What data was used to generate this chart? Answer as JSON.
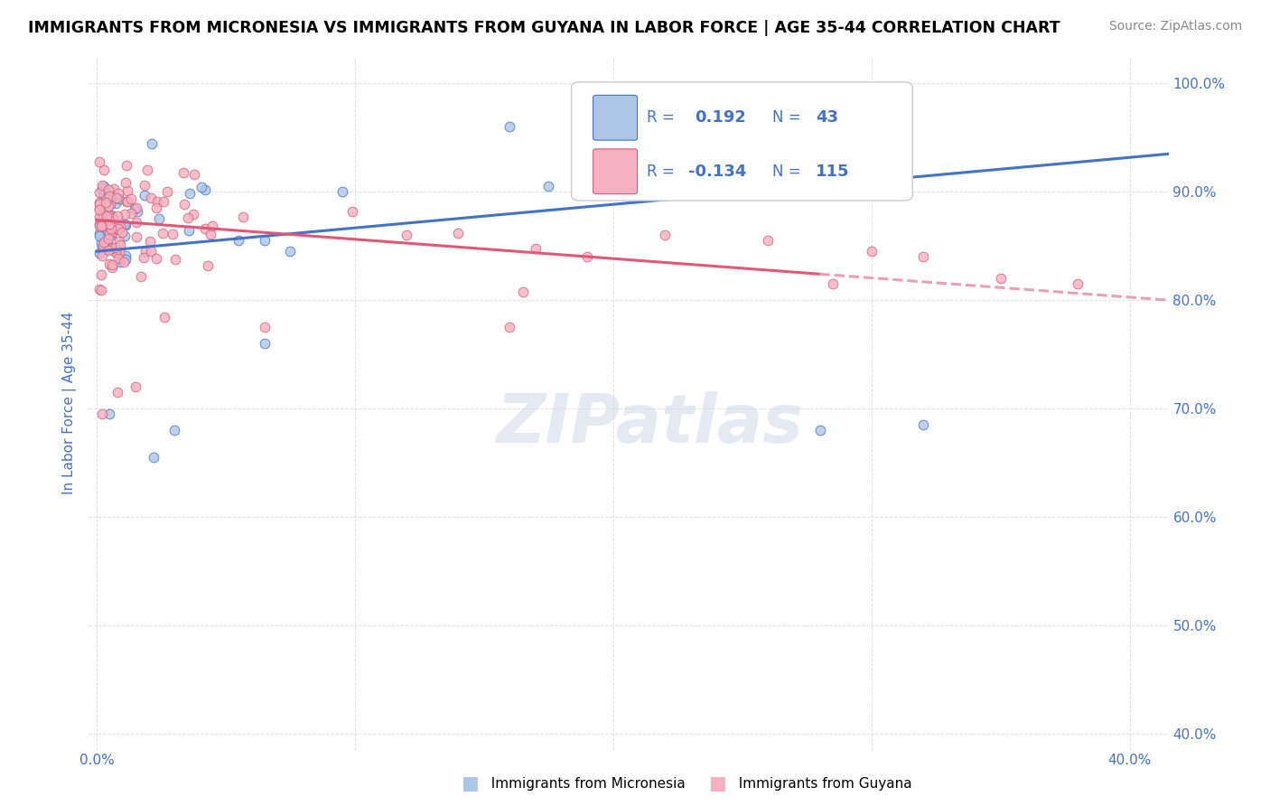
{
  "title": "IMMIGRANTS FROM MICRONESIA VS IMMIGRANTS FROM GUYANA IN LABOR FORCE | AGE 35-44 CORRELATION CHART",
  "source": "Source: ZipAtlas.com",
  "ylabel": "In Labor Force | Age 35-44",
  "x_min": -0.003,
  "x_max": 0.415,
  "y_min": 0.385,
  "y_max": 1.025,
  "color_blue": "#adc6e8",
  "color_pink": "#f5afc0",
  "line_blue": "#4472c4",
  "line_pink": "#e05878",
  "line_pink_dash": "#e8a0b5",
  "watermark": "ZIPatlas",
  "legend_text_color": "#4472c4",
  "grid_color": "#cccccc",
  "blue_line_x0": 0.0,
  "blue_line_y0": 0.845,
  "blue_line_x1": 0.415,
  "blue_line_y1": 0.935,
  "pink_line_x0": 0.0,
  "pink_line_y0": 0.874,
  "pink_line_solid_x1": 0.28,
  "pink_line_dash_x1": 0.415,
  "pink_line_y1": 0.8
}
